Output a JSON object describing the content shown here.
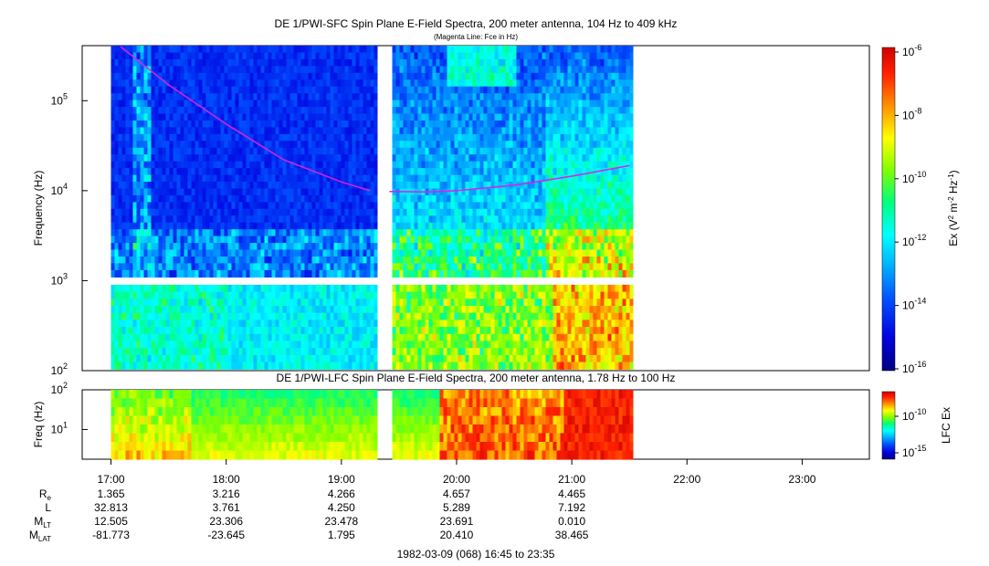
{
  "chart_data": [
    {
      "type": "heatmap",
      "title": "DE 1/PWI-SFC  Spin Plane E-Field Spectra, 200 meter antenna, 104 Hz to 409 kHz",
      "subtitle": "(Magenta Line: Fce in Hz)",
      "ylabel": "Frequency (Hz)",
      "yscale": "log",
      "ylim": [
        100,
        409000
      ],
      "yticks": [
        {
          "value": 100,
          "base": "10",
          "exp": "2"
        },
        {
          "value": 1000,
          "base": "10",
          "exp": "3"
        },
        {
          "value": 10000,
          "base": "10",
          "exp": "4"
        },
        {
          "value": 100000,
          "base": "10",
          "exp": "5"
        }
      ],
      "data_gap": [
        "19:18",
        "19:25"
      ],
      "data_end": "21:32",
      "fce_series": {
        "times": [
          "17:05",
          "17:30",
          "18:00",
          "18:30",
          "19:00",
          "19:15",
          "19:25",
          "19:45",
          "20:00",
          "20:30",
          "21:00",
          "21:30"
        ],
        "values": [
          400000,
          150000,
          55000,
          22000,
          12500,
          10000,
          9800,
          9700,
          10000,
          11500,
          14500,
          19000
        ]
      },
      "colorbar": {
        "label": "Ex (V² m⁻² Hz⁻¹)",
        "label_base": "Ex (V",
        "label_sup1": "2",
        "label_mid": " m",
        "label_sup2": "-2",
        "label_mid2": " Hz",
        "label_sup3": "-1",
        "label_end": ")",
        "scale": "log",
        "range": [
          1e-16,
          1e-06
        ],
        "ticks": [
          {
            "base": "10",
            "exp": "-6"
          },
          {
            "base": "10",
            "exp": "-8"
          },
          {
            "base": "10",
            "exp": "-10"
          },
          {
            "base": "10",
            "exp": "-12"
          },
          {
            "base": "10",
            "exp": "-14"
          },
          {
            "base": "10",
            "exp": "-16"
          }
        ]
      }
    },
    {
      "type": "heatmap",
      "title": "DE 1/PWI-LFC  Spin Plane E-Field Spectra, 200 meter antenna, 1.78 Hz to 100 Hz",
      "ylabel": "Freq (Hz)",
      "yscale": "log",
      "ylim": [
        1.78,
        100
      ],
      "yticks": [
        {
          "value": 10,
          "base": "10",
          "exp": "1"
        },
        {
          "value": 100,
          "base": "10",
          "exp": "2"
        }
      ],
      "colorbar": {
        "label": "LFC Ex",
        "scale": "log",
        "ticks": [
          {
            "base": "10",
            "exp": "-10"
          },
          {
            "base": "10",
            "exp": "-15"
          }
        ]
      }
    }
  ],
  "time_axis": {
    "range": [
      "16:45",
      "23:35"
    ],
    "ticks": [
      "17:00",
      "18:00",
      "19:00",
      "20:00",
      "21:00",
      "22:00",
      "23:00"
    ]
  },
  "ephemeris": {
    "rows": [
      {
        "label": "R",
        "sub": "e",
        "values": [
          "1.365",
          "3.216",
          "4.266",
          "4.657",
          "4.465"
        ]
      },
      {
        "label": "L",
        "sub": "",
        "values": [
          "32.813",
          "3.761",
          "4.250",
          "5.289",
          "7.192"
        ]
      },
      {
        "label": "M",
        "sub": "LT",
        "values": [
          "12.505",
          "23.306",
          "23.478",
          "23.691",
          "0.010"
        ]
      },
      {
        "label": "M",
        "sub": "LAT",
        "values": [
          "-81.773",
          "-23.645",
          "1.795",
          "20.410",
          "38.465"
        ]
      }
    ]
  },
  "footer": "1982-03-09 (068) 16:45 to 23:35",
  "colors": {
    "fce_line": "#e020e0"
  }
}
